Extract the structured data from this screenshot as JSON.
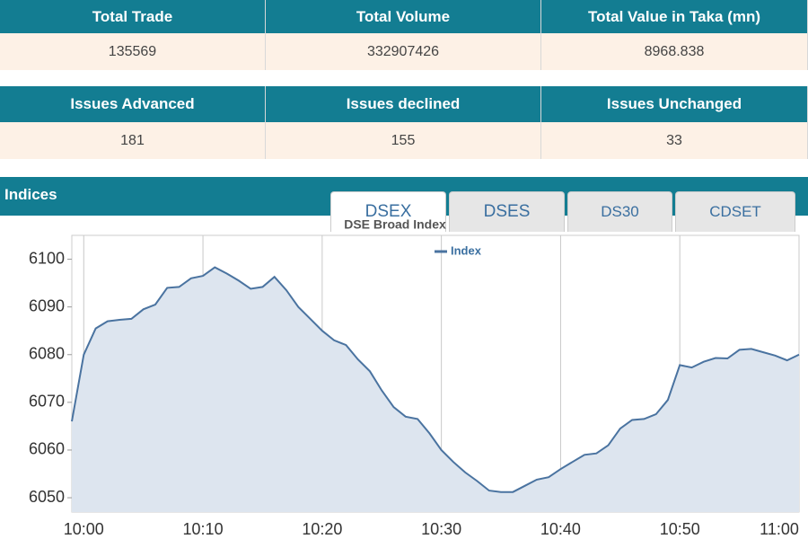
{
  "summary_table_1": {
    "headers": [
      "Total Trade",
      "Total Volume",
      "Total Value in Taka (mn)"
    ],
    "values": [
      "135569",
      "332907426",
      "8968.838"
    ]
  },
  "summary_table_2": {
    "headers": [
      "Issues Advanced",
      "Issues declined",
      "Issues Unchanged"
    ],
    "values": [
      "181",
      "155",
      "33"
    ]
  },
  "section_title": "Indices",
  "tabs": [
    "DSEX",
    "DSES",
    "DS30",
    "CDSET"
  ],
  "chart_data": {
    "type": "line",
    "title": "DSE Broad Index",
    "x": [
      "09:59",
      "10:00",
      "10:01",
      "10:02",
      "10:03",
      "10:04",
      "10:05",
      "10:06",
      "10:07",
      "10:08",
      "10:09",
      "10:10",
      "10:11",
      "10:12",
      "10:13",
      "10:14",
      "10:15",
      "10:16",
      "10:17",
      "10:18",
      "10:19",
      "10:20",
      "10:21",
      "10:22",
      "10:23",
      "10:24",
      "10:25",
      "10:26",
      "10:27",
      "10:28",
      "10:29",
      "10:30",
      "10:31",
      "10:32",
      "10:33",
      "10:34",
      "10:35",
      "10:36",
      "10:37",
      "10:38",
      "10:39",
      "10:40",
      "10:41",
      "10:42",
      "10:43",
      "10:44",
      "10:45",
      "10:46",
      "10:47",
      "10:48",
      "10:49",
      "10:50",
      "10:51",
      "10:52",
      "10:53",
      "10:54",
      "10:55",
      "10:56",
      "10:57",
      "10:58",
      "10:59",
      "11:00"
    ],
    "series": [
      {
        "name": "Index",
        "color": "#4a73a0",
        "fill": "#dde5ef",
        "values": [
          6066,
          6080,
          6085.5,
          6087,
          6087.3,
          6087.5,
          6089.5,
          6090.5,
          6094,
          6094.2,
          6096,
          6096.5,
          6098.3,
          6097,
          6095.5,
          6093.8,
          6094.2,
          6096.3,
          6093.5,
          6090,
          6087.5,
          6085,
          6083,
          6082,
          6079,
          6076.5,
          6072.5,
          6069,
          6067,
          6066.5,
          6063.5,
          6060,
          6057.5,
          6055.3,
          6053.5,
          6051.5,
          6051.2,
          6051.2,
          6052.5,
          6053.8,
          6054.3,
          6056,
          6057.5,
          6059,
          6059.3,
          6061,
          6064.5,
          6066.3,
          6066.5,
          6067.5,
          6070.5,
          6077.8,
          6077.3,
          6078.5,
          6079.3,
          6079.2,
          6081,
          6081.2,
          6080.5,
          6079.8,
          6078.8,
          6080
        ]
      }
    ],
    "xlim": [
      "09:59",
      "11:00"
    ],
    "xticks": [
      "10:00",
      "10:10",
      "10:20",
      "10:30",
      "10:40",
      "10:50",
      "11:00"
    ],
    "ylim": [
      6047,
      6105
    ],
    "yticks": [
      6050,
      6060,
      6070,
      6080,
      6090,
      6100
    ],
    "xgrid": true,
    "legend": "top"
  }
}
